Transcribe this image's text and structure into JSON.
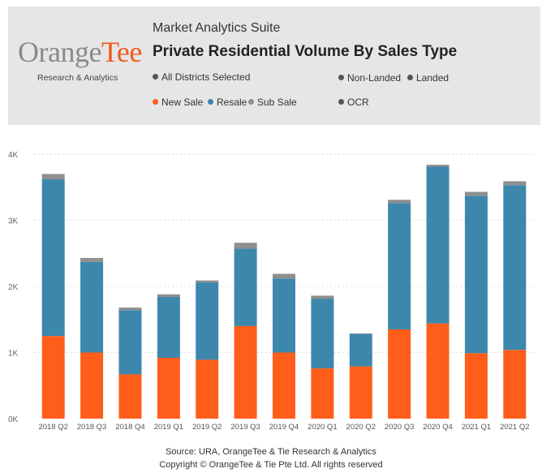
{
  "header": {
    "logo_text": "OrangeTee",
    "logo_subtitle": "Research & Analytics",
    "suite_title": "Market Analytics Suite",
    "chart_title": "Private Residential Volume By Sales Type",
    "filters": {
      "districts": "All Districts Selected",
      "non_landed": "Non-Landed",
      "landed": "Landed",
      "ocr": "OCR"
    },
    "legend": {
      "new_sale": "New Sale",
      "resale": "Resale",
      "sub_sale": "Sub Sale"
    }
  },
  "colors": {
    "new_sale": "#ff5e1a",
    "resale": "#3d87ad",
    "sub_sale": "#8f8f8f",
    "filter_dot": "#555555",
    "header_bg": "#e6e6e6"
  },
  "chart_data": {
    "type": "bar",
    "stacked": true,
    "title": "Private Residential Volume By Sales Type",
    "categories": [
      "2018 Q2",
      "2018 Q3",
      "2018 Q4",
      "2019 Q1",
      "2019 Q2",
      "2019 Q3",
      "2019 Q4",
      "2020 Q1",
      "2020 Q2",
      "2020 Q3",
      "2020 Q4",
      "2021 Q1",
      "2021 Q2"
    ],
    "series": [
      {
        "name": "New Sale",
        "color": "#ff5e1a",
        "values": [
          1250,
          1000,
          670,
          920,
          890,
          1400,
          1000,
          760,
          790,
          1350,
          1440,
          990,
          1040
        ]
      },
      {
        "name": "Resale",
        "color": "#3d87ad",
        "values": [
          2370,
          1370,
          970,
          920,
          1170,
          1170,
          1120,
          1050,
          490,
          1910,
          2370,
          2380,
          2490
        ]
      },
      {
        "name": "Sub Sale",
        "color": "#8f8f8f",
        "values": [
          80,
          60,
          40,
          40,
          30,
          90,
          70,
          50,
          10,
          50,
          30,
          60,
          60
        ]
      }
    ],
    "yticks": [
      "0K",
      "1K",
      "2K",
      "3K",
      "4K"
    ],
    "ytick_values": [
      0,
      1000,
      2000,
      3000,
      4000
    ],
    "ylim": [
      0,
      4000
    ],
    "grid": true,
    "legend": "top"
  },
  "footer": {
    "line1": "Source: URA, OrangeTee & Tie Research & Analytics",
    "line2": "Copyright © OrangeTee & Tie Pte Ltd. All rights reserved"
  }
}
